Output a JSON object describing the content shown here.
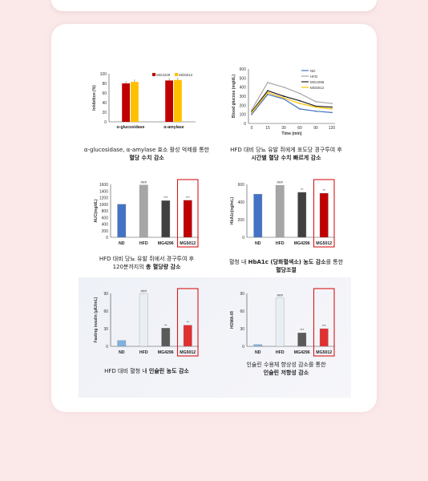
{
  "captions": {
    "c1_line1": "α-glucosidase, α-amylase 효소 활성 억제를 통한",
    "c1_line2": "혈당 수치 감소",
    "c2_line1": "HFD 대비 당뇨 유발 쥐에게 포도당 경구투여 후",
    "c2_line2": "시간별 혈당 수치 빠르게 감소",
    "c3_line1": "HFD 대비 당뇨 유발 쥐에서 경구투여 후",
    "c3_line2a": "120분까지의 ",
    "c3_line2b": "총 혈당량 감소",
    "c4_line1a": "혈청 내 ",
    "c4_line1b": "HbA1c (당화혈색소) 농도 감소",
    "c4_line1c": "를 통한",
    "c4_line2": "혈당조절",
    "c5_line1a": "HFD 대비 혈청 내 ",
    "c5_line1b": "인슐린 농도 감소",
    "c6_line1": "인슐린 수용체 향상성 감소를 통한",
    "c6_line2": "인슐린 저항성 감소"
  },
  "chart_data": [
    {
      "type": "bar",
      "ylabel": "Inhibition (%)",
      "ylim": [
        0,
        100
      ],
      "yticks": [
        "0",
        "20",
        "40",
        "60",
        "80",
        "100"
      ],
      "categories": [
        "α-glucosidase",
        "α-amylase"
      ],
      "series": [
        {
          "name": "MG4229",
          "color": "#c00000",
          "values": [
            80,
            86
          ]
        },
        {
          "name": "MG5012",
          "color": "#ffc000",
          "values": [
            83,
            87
          ]
        }
      ]
    },
    {
      "type": "line",
      "ylabel": "Blood glucose (mg/dL)",
      "xlabel": "Time (min)",
      "x": [
        0,
        15,
        30,
        60,
        90,
        120
      ],
      "xticks": [
        "0",
        "15",
        "30",
        "60",
        "90",
        "120"
      ],
      "ylim": [
        0,
        600
      ],
      "yticks": [
        "0",
        "100",
        "200",
        "300",
        "400",
        "500",
        "600"
      ],
      "series": [
        {
          "name": "ND",
          "color": "#4472c4",
          "values": [
            100,
            320,
            270,
            160,
            135,
            120
          ]
        },
        {
          "name": "HFD",
          "color": "#a6a6a6",
          "values": [
            150,
            450,
            400,
            330,
            240,
            220
          ]
        },
        {
          "name": "MG4296",
          "color": "#222222",
          "values": [
            130,
            360,
            300,
            250,
            190,
            180
          ]
        },
        {
          "name": "MG5012",
          "color": "#ffc000",
          "values": [
            120,
            340,
            280,
            220,
            180,
            160
          ]
        }
      ]
    },
    {
      "type": "bar",
      "ylabel": "AUC(mg/dL)",
      "ylim": [
        0,
        1600
      ],
      "yticks": [
        "0",
        "200",
        "400",
        "600",
        "800",
        "1000",
        "1200",
        "1400",
        "1600"
      ],
      "categories": [
        "ND",
        "HFD",
        "MG4296",
        "MG5012"
      ],
      "values": [
        1000,
        1580,
        1110,
        1120
      ],
      "colors": [
        "#4472c4",
        "#a6a6a6",
        "#404040",
        "#c00000"
      ],
      "annotations": [
        "",
        "###",
        "***",
        "***"
      ],
      "highlight": "MG5012"
    },
    {
      "type": "bar",
      "ylabel": "HbA1c(ng/mL)",
      "ylim": [
        0,
        600
      ],
      "yticks": [
        "0",
        "200",
        "400",
        "600"
      ],
      "categories": [
        "ND",
        "HFD",
        "MG4296",
        "MG5012"
      ],
      "values": [
        490,
        590,
        510,
        500
      ],
      "colors": [
        "#4472c4",
        "#a6a6a6",
        "#404040",
        "#c00000"
      ],
      "annotations": [
        "",
        "###",
        "**",
        "**"
      ],
      "highlight": "MG5012"
    },
    {
      "type": "bar",
      "ylabel": "Fasting insulin (μIU/mL)",
      "ylim": [
        0,
        90
      ],
      "yticks": [
        "0",
        "30",
        "60",
        "90"
      ],
      "categories": [
        "ND",
        "HFD",
        "MG4296",
        "MG5012"
      ],
      "values": [
        10,
        89,
        31,
        36
      ],
      "colors": [
        "#7fb0e0",
        "#e9eef5",
        "#5a5a5a",
        "#e03030"
      ],
      "annotations": [
        "",
        "###",
        "**",
        "**"
      ],
      "highlight": "MG5012"
    },
    {
      "type": "bar",
      "ylabel": "HOMA-IR",
      "ylim": [
        0,
        90
      ],
      "yticks": [
        "0",
        "30",
        "60",
        "90"
      ],
      "categories": [
        "ND",
        "HFD",
        "MG4296",
        "MG5012"
      ],
      "values": [
        3,
        82,
        23,
        30
      ],
      "colors": [
        "#7fb0e0",
        "#e9eef5",
        "#5a5a5a",
        "#e03030"
      ],
      "annotations": [
        "",
        "###",
        "***",
        "***"
      ],
      "highlight": "MG5012"
    }
  ]
}
